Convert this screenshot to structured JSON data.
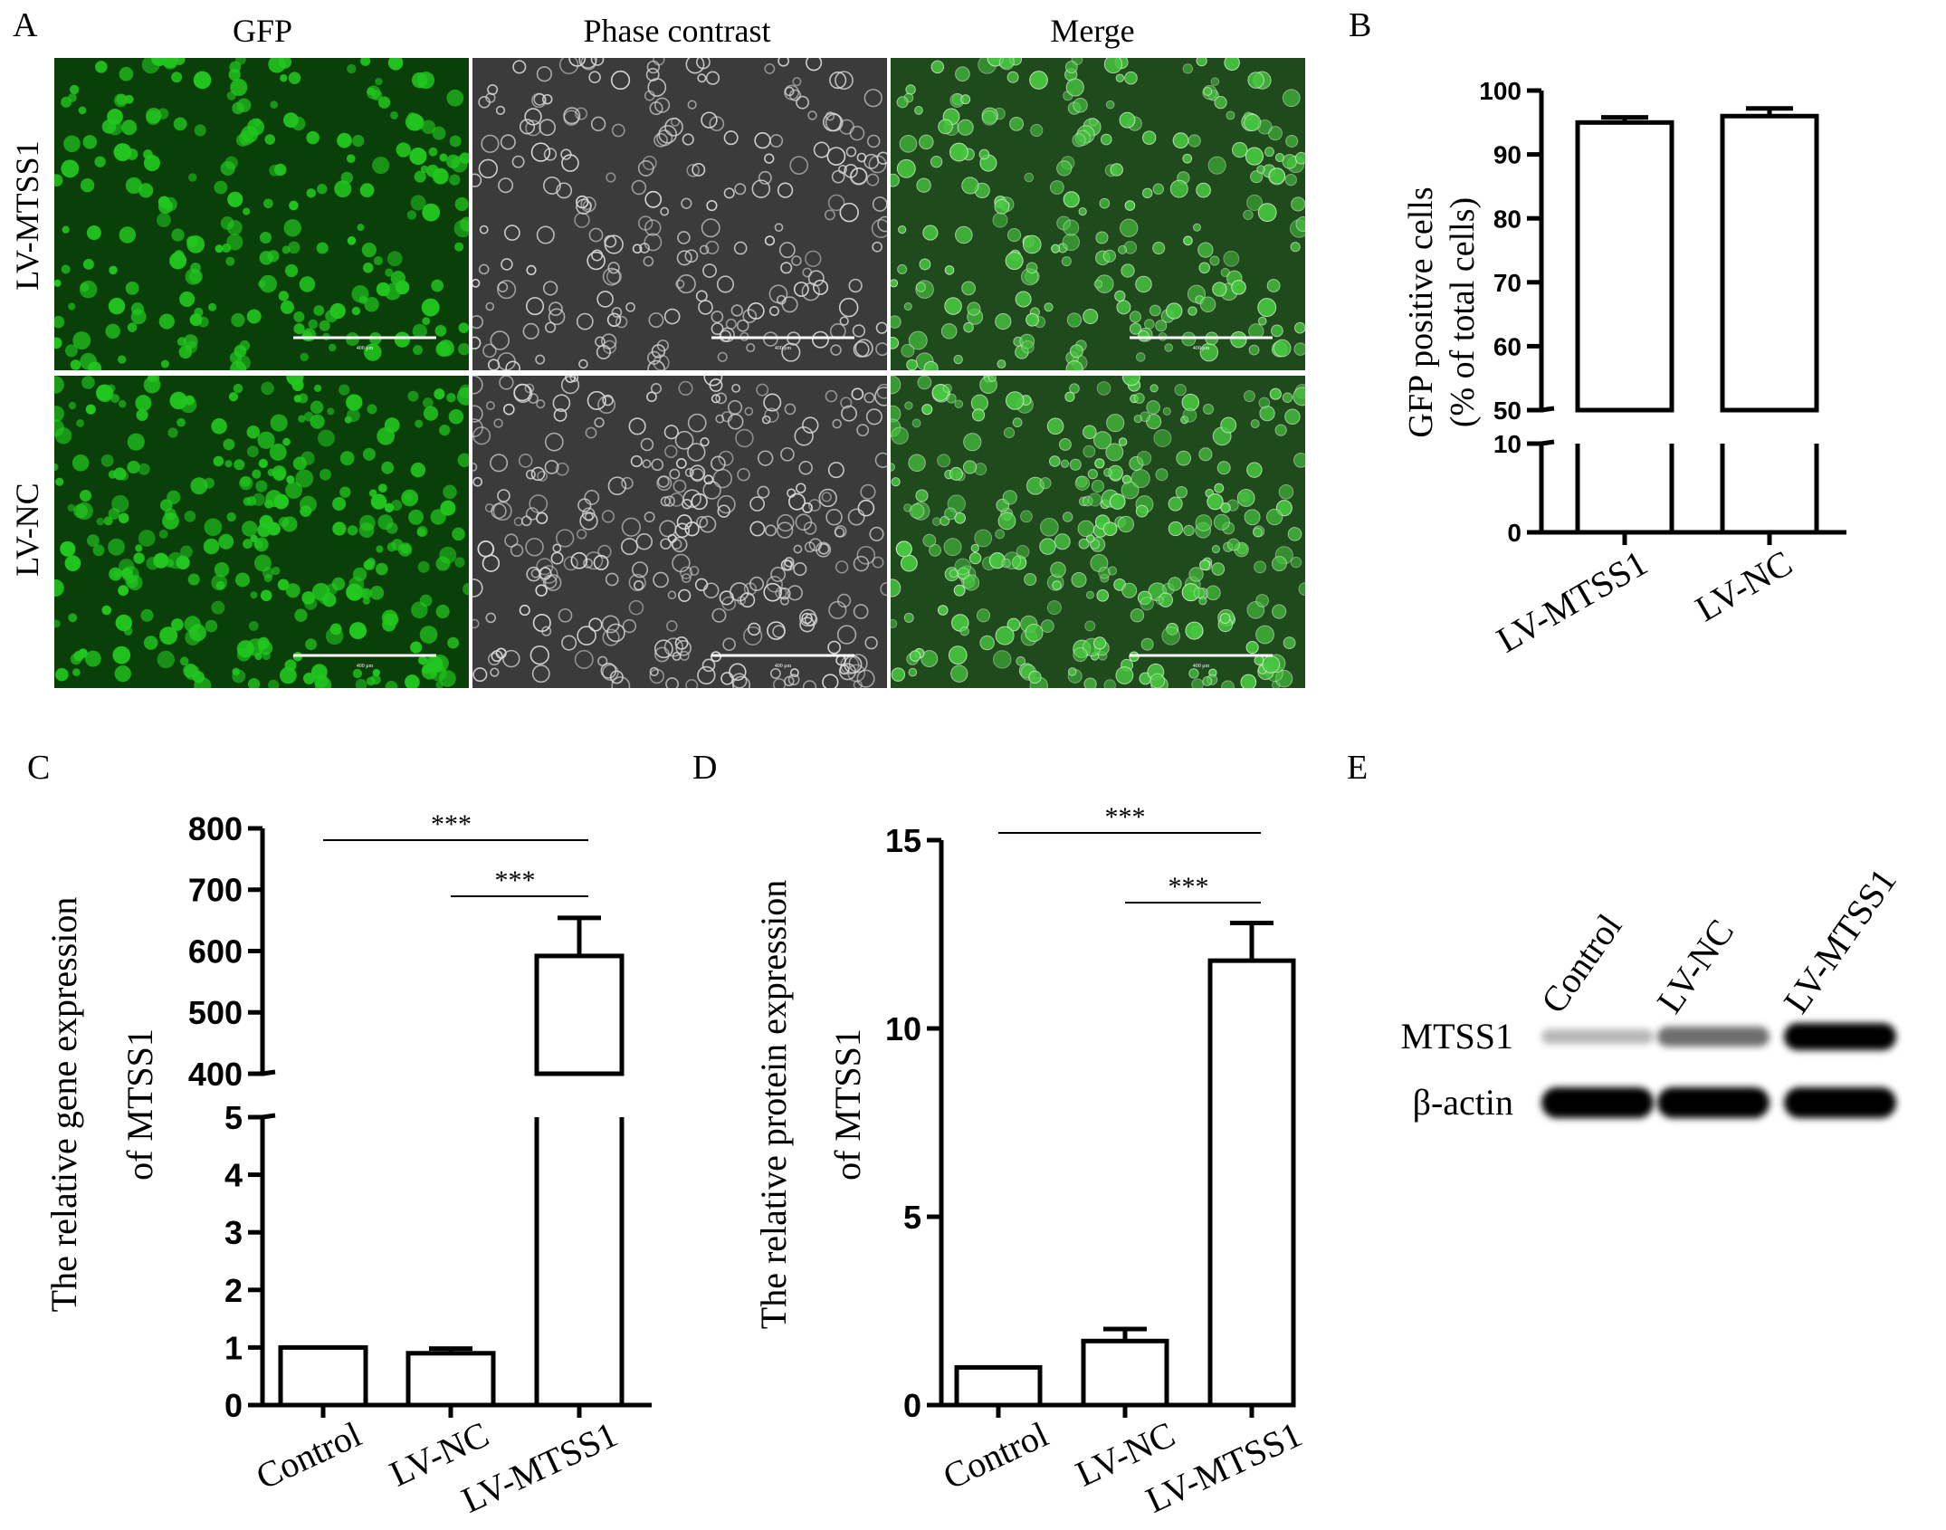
{
  "panel_labels": {
    "a": "A",
    "b": "B",
    "c": "C",
    "d": "D",
    "e": "E"
  },
  "micrographs": {
    "columns": [
      "GFP",
      "Phase contrast",
      "Merge"
    ],
    "rows": [
      "LV-MTSS1",
      "LV-NC"
    ],
    "scale_bar_text": "400 μm"
  },
  "colors": {
    "gfp_green": "#22c71f",
    "gfp_background": "#0b3f0a",
    "phase_background": "#3b3b3b",
    "merge_background": "#1f4a1c",
    "bar_fill": "#ffffff",
    "axis": "#000000"
  },
  "chart_data": [
    {
      "panel": "B",
      "type": "bar",
      "categories": [
        "LV-MTSS1",
        "LV-NC"
      ],
      "values": [
        95,
        96
      ],
      "errors": [
        0.8,
        1.2
      ],
      "title": "",
      "xlabel": "",
      "ylabel_lines": [
        "GFP positive cells",
        "(% of total cells)"
      ],
      "axis_break": {
        "lower": [
          0,
          10
        ],
        "upper": [
          50,
          100
        ]
      },
      "yticks_lower": [
        "0",
        "10"
      ],
      "yticks_upper": [
        "50",
        "60",
        "70",
        "80",
        "90",
        "100"
      ],
      "grid": false,
      "legend": "none"
    },
    {
      "panel": "C",
      "type": "bar",
      "categories": [
        "Control",
        "LV-NC",
        "LV-MTSS1"
      ],
      "values": [
        1,
        0.9,
        592
      ],
      "errors": [
        0,
        0.08,
        62
      ],
      "title": "",
      "xlabel": "",
      "ylabel_lines": [
        "The relative gene expression",
        "of  MTSS1"
      ],
      "axis_break": {
        "lower": [
          0,
          5
        ],
        "upper": [
          400,
          800
        ]
      },
      "yticks_lower": [
        "0",
        "1",
        "2",
        "3",
        "4",
        "5"
      ],
      "yticks_upper": [
        "400",
        "500",
        "600",
        "700",
        "800"
      ],
      "significance": [
        {
          "from": "Control",
          "to": "LV-MTSS1",
          "label": "***"
        },
        {
          "from": "LV-NC",
          "to": "LV-MTSS1",
          "label": "***"
        }
      ],
      "grid": false,
      "legend": "none"
    },
    {
      "panel": "D",
      "type": "bar",
      "categories": [
        "Control",
        "LV-NC",
        "LV-MTSS1"
      ],
      "values": [
        1,
        1.7,
        11.8
      ],
      "errors": [
        0,
        0.32,
        1.0
      ],
      "title": "",
      "xlabel": "",
      "ylabel_lines": [
        "The relative protein expression",
        "of  MTSS1"
      ],
      "ylim": [
        0,
        15
      ],
      "yticks": [
        "0",
        "5",
        "10",
        "15"
      ],
      "significance": [
        {
          "from": "Control",
          "to": "LV-MTSS1",
          "label": "***"
        },
        {
          "from": "LV-NC",
          "to": "LV-MTSS1",
          "label": "***"
        }
      ],
      "grid": false,
      "legend": "none"
    }
  ],
  "western_blot": {
    "lanes": [
      "Control",
      "LV-NC",
      "LV-MTSS1"
    ],
    "rows": [
      {
        "label": "MTSS1",
        "intensity": [
          0.15,
          0.5,
          1.0
        ]
      },
      {
        "label": "β-actin",
        "intensity": [
          1.0,
          1.0,
          1.0
        ]
      }
    ]
  }
}
